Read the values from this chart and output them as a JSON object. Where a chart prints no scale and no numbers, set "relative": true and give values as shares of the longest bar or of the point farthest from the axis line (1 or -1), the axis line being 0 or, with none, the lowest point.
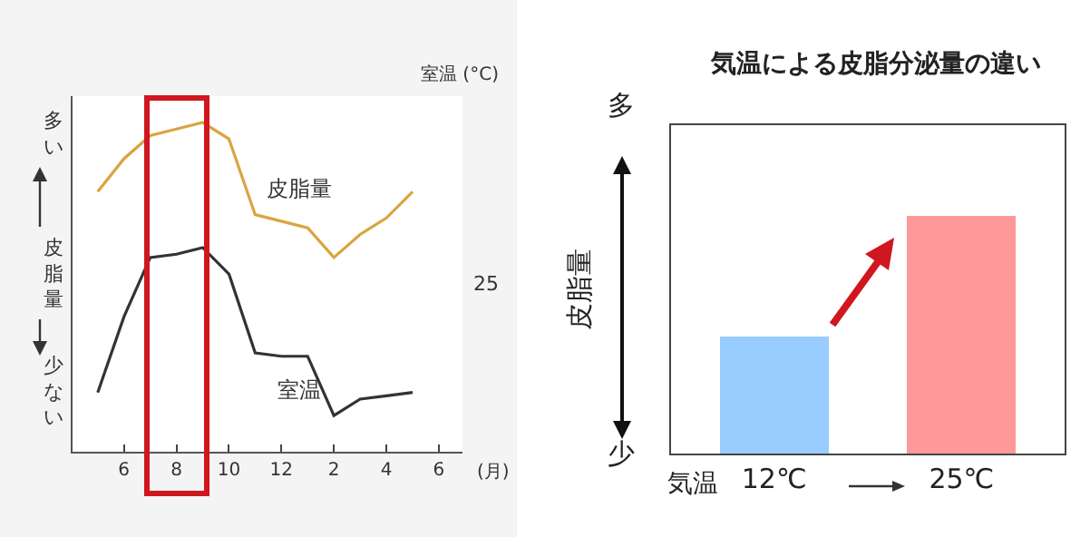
{
  "chart_data": [
    {
      "type": "line",
      "relative": true,
      "xlabel": "(月)",
      "ylabel": "皮脂量",
      "y2label": "室温 (°C)",
      "annotations": [
        "多い",
        "少ない",
        "25"
      ],
      "categories": [
        null,
        "6",
        null,
        "8",
        null,
        "10",
        null,
        "12",
        null,
        "2",
        null,
        "4",
        null,
        "6"
      ],
      "grid": false,
      "legend": false,
      "series": [
        {
          "name": "皮脂量",
          "color": "#d9a441",
          "values": [
            0.79,
            0.89,
            0.96,
            0.98,
            1,
            0.95,
            0.72,
            0.7,
            0.68,
            0.59,
            0.66,
            0.71,
            0.79,
            null
          ]
        },
        {
          "name": "室温",
          "color": "#333333",
          "values": [
            0.18,
            0.41,
            0.59,
            0.6,
            0.62,
            0.54,
            0.3,
            0.29,
            0.29,
            0.11,
            0.16,
            0.17,
            0.18,
            null
          ]
        }
      ]
    },
    {
      "type": "bar",
      "relative": true,
      "title": "気温による皮脂分泌量の違い",
      "ylabel": "皮脂量",
      "categories": [
        "12℃",
        "25℃"
      ],
      "colors": [
        "#99ccff",
        "#ff9999"
      ],
      "values": [
        0.49,
        1
      ],
      "annotations": [
        "多",
        "少",
        "気温"
      ],
      "grid": false,
      "legend": false
    }
  ]
}
